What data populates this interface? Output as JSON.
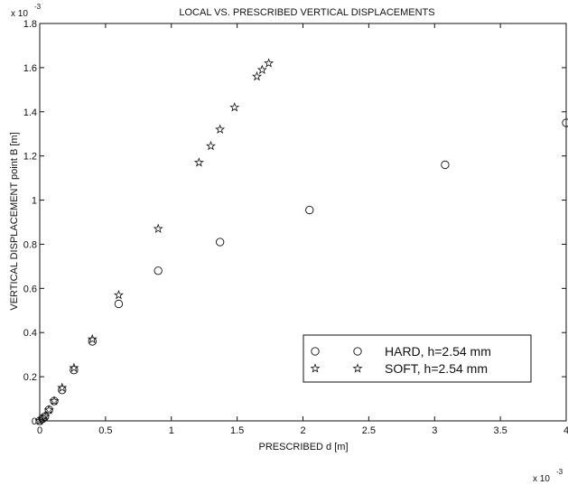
{
  "chart_data": {
    "type": "scatter",
    "title": "LOCAL VS. PRESCRIBED VERTICAL DISPLACEMENTS",
    "xlabel": "PRESCRIBED d [m]",
    "ylabel": "VERTICAL DISPLACEMENT  point B [m]",
    "x_multiplier": "x 10",
    "x_multiplier_exp": "-3",
    "y_multiplier": "x 10",
    "y_multiplier_exp": "-3",
    "xlim": [
      0,
      4
    ],
    "ylim": [
      0,
      1.8
    ],
    "x_ticks": [
      0,
      0.5,
      1,
      1.5,
      2,
      2.5,
      3,
      3.5,
      4
    ],
    "x_tick_labels": [
      "0",
      "0.5",
      "1",
      "1.5",
      "2",
      "2.5",
      "3",
      "3.5",
      "4"
    ],
    "y_ticks": [
      0,
      0.2,
      0.4,
      0.6,
      0.8,
      1,
      1.2,
      1.4,
      1.6,
      1.8
    ],
    "y_tick_labels": [
      "0",
      "0.2",
      "0.4",
      "0.6",
      "0.8",
      "1",
      "1.2",
      "1.4",
      "1.6",
      "1.8"
    ],
    "grid": false,
    "legend_position": "lower-right",
    "series": [
      {
        "name": "HARD, h=2.54 mm",
        "marker": "circle",
        "x": [
          0.0,
          0.02,
          0.04,
          0.07,
          0.11,
          0.17,
          0.26,
          0.4,
          0.6,
          0.9,
          1.37,
          2.05,
          3.08,
          4.0
        ],
        "y": [
          0.0,
          0.01,
          0.02,
          0.05,
          0.09,
          0.14,
          0.23,
          0.36,
          0.53,
          0.68,
          0.81,
          0.955,
          1.16,
          1.35
        ]
      },
      {
        "name": "SOFT, h=2.54 mm",
        "marker": "star",
        "x": [
          0.0,
          0.02,
          0.04,
          0.07,
          0.11,
          0.17,
          0.26,
          0.4,
          0.6,
          0.9,
          1.21,
          1.3,
          1.37,
          1.48,
          1.65,
          1.69,
          1.74
        ],
        "y": [
          0.0,
          0.01,
          0.02,
          0.05,
          0.09,
          0.15,
          0.24,
          0.37,
          0.57,
          0.87,
          1.17,
          1.245,
          1.32,
          1.42,
          1.56,
          1.59,
          1.62
        ]
      }
    ]
  }
}
